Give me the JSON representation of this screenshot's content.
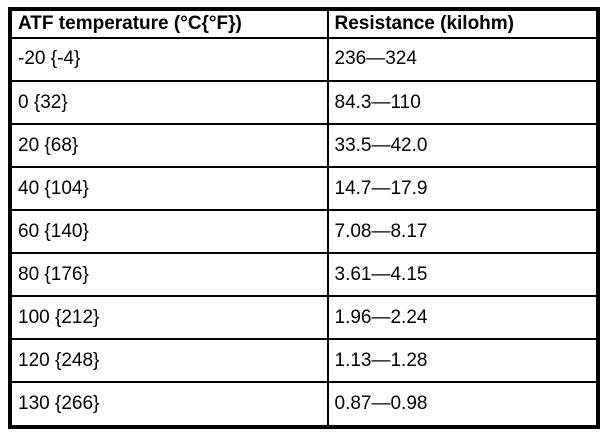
{
  "table": {
    "headers": [
      "ATF temperature (°C{°F})",
      "Resistance (kilohm)"
    ],
    "rows": [
      [
        "-20 {-4}",
        "236—324"
      ],
      [
        "0 {32}",
        "84.3—110"
      ],
      [
        "20 {68}",
        "33.5—42.0"
      ],
      [
        "40 {104}",
        "14.7—17.9"
      ],
      [
        "60 {140}",
        "7.08—8.17"
      ],
      [
        "80 {176}",
        "3.61—4.15"
      ],
      [
        "100 {212}",
        "1.96—2.24"
      ],
      [
        "120 {248}",
        "1.13—1.28"
      ],
      [
        "130 {266}",
        "0.87—0.98"
      ]
    ],
    "colors": {
      "border": "#000000",
      "text": "#000000",
      "background": "#ffffff"
    }
  }
}
